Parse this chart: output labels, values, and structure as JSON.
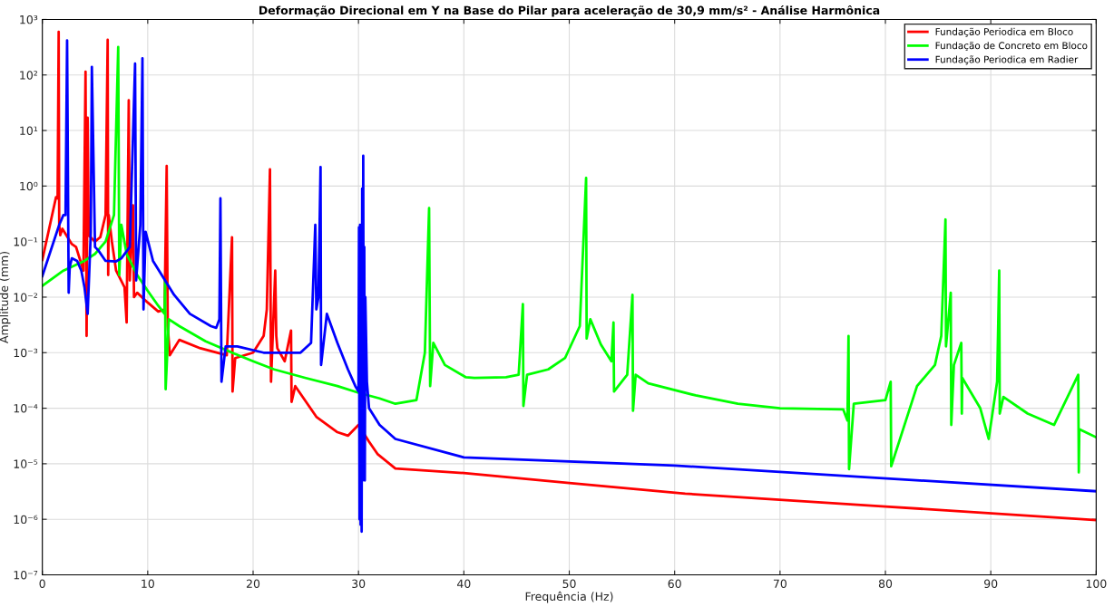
{
  "chart_data": {
    "type": "line",
    "title": "Deformação Direcional em Y na Base do Pilar para aceleração de 30,9 mm/s² - Análise Harmônica",
    "xlabel": "Frequência (Hz)",
    "ylabel": "Amplitude (mm)",
    "log": "y",
    "grid": true,
    "legend": "top right",
    "xlim": [
      0,
      100
    ],
    "xticks": [
      0,
      10,
      20,
      30,
      40,
      50,
      60,
      70,
      80,
      90,
      100
    ],
    "ylim": [
      1e-07,
      1000
    ],
    "yticks": [
      {
        "value": 1e-07,
        "label": "10⁻⁷"
      },
      {
        "value": 1e-06,
        "label": "10⁻⁶"
      },
      {
        "value": 1e-05,
        "label": "10⁻⁵"
      },
      {
        "value": 0.0001,
        "label": "10⁻⁴"
      },
      {
        "value": 0.001,
        "label": "10⁻³"
      },
      {
        "value": 0.01,
        "label": "10⁻²"
      },
      {
        "value": 0.1,
        "label": "10⁻¹"
      },
      {
        "value": 1,
        "label": "10⁰"
      },
      {
        "value": 10,
        "label": "10¹"
      },
      {
        "value": 100,
        "label": "10²"
      },
      {
        "value": 1000,
        "label": "10³"
      }
    ],
    "series": [
      {
        "name": "Fundação Periodica em Bloco",
        "color": "#ff0000",
        "x": [
          0,
          1.3,
          1.45,
          1.55,
          1.6,
          1.7,
          1.9,
          2.8,
          3.2,
          3.9,
          4.1,
          4.2,
          4.3,
          4.4,
          5,
          5.5,
          6,
          6.2,
          6.25,
          6.3,
          6.6,
          7,
          7.8,
          8,
          8.2,
          8.3,
          8.6,
          8.7,
          9,
          10,
          11,
          11.6,
          11.8,
          11.9,
          12.1,
          13,
          15,
          17.5,
          18,
          18.05,
          18.3,
          20,
          21,
          21.3,
          21.6,
          21.7,
          22.1,
          22.2,
          22.3,
          23,
          23.6,
          23.65,
          24,
          26,
          28,
          29,
          30,
          31,
          31.8,
          33.5,
          40,
          50,
          61,
          80,
          100
        ],
        "values": [
          0.047,
          0.63,
          0.6,
          600,
          0.2,
          0.13,
          0.17,
          0.09,
          0.08,
          0.03,
          115,
          0.002,
          17,
          0.13,
          0.1,
          0.12,
          0.3,
          430,
          0.025,
          0.3,
          0.1,
          0.03,
          0.015,
          0.0035,
          35,
          0.02,
          0.45,
          0.01,
          0.012,
          0.008,
          0.0055,
          0.006,
          2.3,
          0.003,
          0.0009,
          0.0017,
          0.0012,
          0.0009,
          0.12,
          0.0002,
          0.0008,
          0.001,
          0.002,
          0.006,
          2,
          0.0003,
          0.03,
          0.002,
          0.0012,
          0.0007,
          0.0025,
          0.00013,
          0.00025,
          7e-05,
          3.7e-05,
          3.2e-05,
          5e-05,
          2.5e-05,
          1.5e-05,
          8.2e-06,
          6.8e-06,
          4.5e-06,
          2.9e-06,
          1.7e-06,
          9.7e-07
        ]
      },
      {
        "name": "Fundação de Concreto em Bloco",
        "color": "#00ff00",
        "x": [
          0,
          2,
          4,
          5,
          6,
          6.8,
          7.2,
          7.3,
          7.5,
          8,
          9,
          10,
          11,
          11.6,
          11.65,
          11.7,
          12,
          13,
          15.5,
          18,
          20,
          22,
          25,
          28,
          30,
          32,
          33.5,
          35.5,
          36.3,
          36.7,
          36.8,
          37.1,
          38.2,
          40.2,
          41,
          44,
          45.2,
          45.6,
          45.65,
          46,
          48,
          49.6,
          51,
          51.6,
          51.65,
          52,
          53,
          54,
          54.2,
          54.25,
          55.5,
          56,
          56.05,
          56.3,
          57.5,
          62,
          66,
          70,
          76,
          76.4,
          76.5,
          76.55,
          77,
          80,
          80.5,
          80.55,
          83,
          84.7,
          85.3,
          85.7,
          85.75,
          86.2,
          86.25,
          86.5,
          87.2,
          87.25,
          87.3,
          89,
          89.8,
          90.6,
          90.8,
          90.85,
          91.2,
          93.5,
          96,
          98.3,
          98.35,
          98.4,
          100
        ],
        "values": [
          0.016,
          0.03,
          0.045,
          0.06,
          0.1,
          0.3,
          320,
          0.025,
          0.2,
          0.06,
          0.025,
          0.013,
          0.007,
          0.005,
          0.02,
          0.00022,
          0.004,
          0.003,
          0.0016,
          0.001,
          0.0007,
          0.0005,
          0.00035,
          0.00025,
          0.00019,
          0.00015,
          0.00012,
          0.00014,
          0.001,
          0.4,
          0.00025,
          0.0015,
          0.0006,
          0.00036,
          0.00035,
          0.00036,
          0.0004,
          0.0075,
          0.00011,
          0.0004,
          0.0005,
          0.0008,
          0.003,
          1.4,
          0.0018,
          0.004,
          0.0014,
          0.0007,
          0.0035,
          0.0002,
          0.0004,
          0.011,
          9e-05,
          0.0004,
          0.00028,
          0.00017,
          0.00012,
          0.0001,
          9.5e-05,
          6e-05,
          0.002,
          8e-06,
          0.00012,
          0.00014,
          0.0003,
          9e-06,
          0.00025,
          0.0006,
          0.002,
          0.25,
          0.0013,
          0.012,
          5e-05,
          0.0006,
          0.0015,
          8e-05,
          0.00035,
          0.0001,
          2.8e-05,
          0.0003,
          0.03,
          8e-05,
          0.00016,
          8e-05,
          5e-05,
          0.0004,
          7e-06,
          4.2e-05,
          3e-05
        ]
      },
      {
        "name": "Fundação Periodica em Radier",
        "color": "#0000ff",
        "x": [
          0,
          1.6,
          2,
          2.2,
          2.35,
          2.5,
          2.6,
          2.8,
          3.3,
          3.7,
          4,
          4.3,
          4.6,
          4.7,
          5,
          5.3,
          6,
          7,
          7.5,
          8.3,
          8.8,
          8.9,
          9.3,
          9.5,
          9.6,
          9.8,
          10.5,
          12.5,
          14,
          16,
          16.5,
          16.8,
          16.9,
          17,
          17.4,
          18.5,
          21,
          24.5,
          25.5,
          25.9,
          26,
          26.2,
          26.4,
          26.45,
          27,
          28,
          29,
          29.7,
          30,
          30.05,
          30.1,
          30.15,
          30.2,
          30.25,
          30.3,
          30.35,
          30.4,
          30.45,
          30.5,
          30.55,
          30.6,
          30.65,
          30.8,
          31,
          32,
          33.5,
          40,
          60,
          100
        ],
        "values": [
          0.024,
          0.2,
          0.3,
          0.3,
          420,
          0.012,
          0.035,
          0.05,
          0.045,
          0.03,
          0.015,
          0.005,
          0.15,
          140,
          0.08,
          0.07,
          0.045,
          0.044,
          0.05,
          0.08,
          160,
          0.02,
          0.2,
          200,
          0.006,
          0.15,
          0.045,
          0.011,
          0.005,
          0.003,
          0.0028,
          0.004,
          0.6,
          0.0003,
          0.0013,
          0.0013,
          0.001,
          0.001,
          0.0015,
          0.2,
          0.006,
          0.01,
          2.2,
          0.0006,
          0.005,
          0.0015,
          0.0005,
          0.00025,
          0.0002,
          0.18,
          1e-06,
          0.2,
          8e-07,
          0.2,
          6e-07,
          0.9,
          5e-06,
          3.5,
          1e-05,
          0.08,
          5e-06,
          0.01,
          0.0003,
          0.0001,
          5e-05,
          2.8e-05,
          1.3e-05,
          9.3e-06,
          3.2e-06
        ]
      }
    ]
  }
}
